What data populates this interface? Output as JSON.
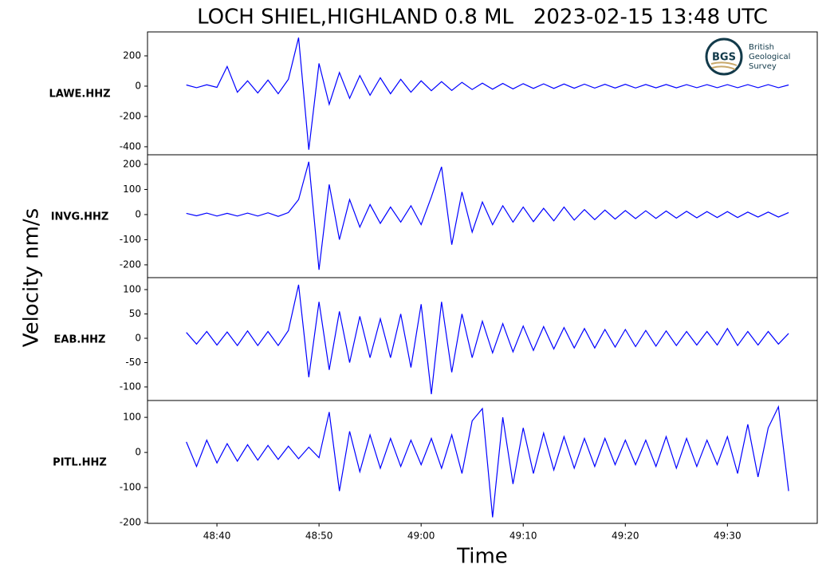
{
  "chart_data": {
    "type": "line",
    "title": "LOCH SHIEL,HIGHLAND 0.8 ML   2023-02-15 13:48 UTC",
    "xlabel": "Time",
    "ylabel": "Velocity nm/s",
    "logo": {
      "abbr": "BGS",
      "lines": [
        "British",
        "Geological",
        "Survey"
      ]
    },
    "x": [
      37,
      38,
      39,
      40,
      41,
      42,
      43,
      44,
      45,
      46,
      47,
      48,
      49,
      50,
      51,
      52,
      53,
      54,
      55,
      56,
      57,
      58,
      59,
      60,
      61,
      62,
      63,
      64,
      65,
      66,
      67,
      68,
      69,
      70,
      71,
      72,
      73,
      74,
      75,
      76,
      77,
      78,
      79,
      80,
      81,
      82,
      83,
      84,
      85,
      86,
      87,
      88,
      89,
      90,
      91,
      92,
      93,
      94,
      95,
      96
    ],
    "xlim": [
      33.2,
      98.8
    ],
    "xticks": [
      {
        "value": 40,
        "label": "48:40"
      },
      {
        "value": 50,
        "label": "48:50"
      },
      {
        "value": 60,
        "label": "49:00"
      },
      {
        "value": 70,
        "label": "49:10"
      },
      {
        "value": 80,
        "label": "49:20"
      },
      {
        "value": 90,
        "label": "49:30"
      }
    ],
    "panels": [
      {
        "name": "LAWE.HHZ",
        "color": "#0000ff",
        "ylim": [
          -453,
          358
        ],
        "yticks": [
          -400,
          -200,
          0,
          200
        ],
        "values": [
          8,
          -10,
          9,
          -8,
          130,
          -40,
          35,
          -45,
          40,
          -50,
          45,
          320,
          -420,
          150,
          -120,
          90,
          -80,
          70,
          -60,
          55,
          -50,
          45,
          -40,
          35,
          -30,
          30,
          -28,
          25,
          -22,
          20,
          -20,
          18,
          -18,
          16,
          -15,
          15,
          -15,
          14,
          -14,
          13,
          -13,
          12,
          -12,
          12,
          -12,
          11,
          -11,
          11,
          -11,
          10,
          -10,
          10,
          -10,
          10,
          -10,
          10,
          -10,
          10,
          -10,
          8
        ]
      },
      {
        "name": "INVG.HHZ",
        "color": "#0000ff",
        "ylim": [
          -251,
          238
        ],
        "yticks": [
          -200,
          -100,
          0,
          100,
          200
        ],
        "values": [
          5,
          -5,
          6,
          -6,
          5,
          -6,
          6,
          -6,
          7,
          -7,
          8,
          60,
          210,
          -220,
          120,
          -100,
          60,
          -50,
          40,
          -35,
          30,
          -30,
          35,
          -40,
          70,
          190,
          -120,
          90,
          -70,
          50,
          -40,
          35,
          -30,
          30,
          -28,
          25,
          -25,
          30,
          -22,
          20,
          -20,
          18,
          -18,
          16,
          -16,
          15,
          -15,
          14,
          -14,
          13,
          -13,
          12,
          -12,
          12,
          -12,
          10,
          -10,
          10,
          -10,
          8
        ]
      },
      {
        "name": "EAB.HHZ",
        "color": "#0000ff",
        "ylim": [
          -127.9,
          124.6
        ],
        "yticks": [
          -100,
          -50,
          0,
          50,
          100
        ],
        "values": [
          12,
          -12,
          14,
          -14,
          13,
          -15,
          15,
          -15,
          14,
          -15,
          16,
          110,
          -80,
          75,
          -65,
          55,
          -50,
          45,
          -40,
          40,
          -40,
          50,
          -60,
          70,
          -115,
          75,
          -70,
          50,
          -40,
          35,
          -30,
          30,
          -28,
          25,
          -25,
          24,
          -22,
          22,
          -20,
          20,
          -20,
          18,
          -18,
          18,
          -17,
          16,
          -16,
          15,
          -15,
          14,
          -14,
          14,
          -14,
          20,
          -15,
          14,
          -14,
          14,
          -12,
          10
        ]
      },
      {
        "name": "PITL.HHZ",
        "color": "#0000ff",
        "ylim": [
          -202,
          148
        ],
        "yticks": [
          -200,
          -100,
          0,
          100
        ],
        "values": [
          30,
          -40,
          35,
          -30,
          25,
          -25,
          22,
          -22,
          20,
          -20,
          18,
          -18,
          15,
          -15,
          115,
          -110,
          60,
          -55,
          50,
          -45,
          40,
          -40,
          35,
          -35,
          40,
          -45,
          50,
          -60,
          90,
          125,
          -185,
          100,
          -90,
          70,
          -60,
          55,
          -50,
          45,
          -45,
          40,
          -40,
          40,
          -35,
          35,
          -35,
          35,
          -40,
          45,
          -45,
          40,
          -40,
          35,
          -35,
          45,
          -60,
          80,
          -70,
          70,
          130,
          -110
        ]
      }
    ]
  }
}
